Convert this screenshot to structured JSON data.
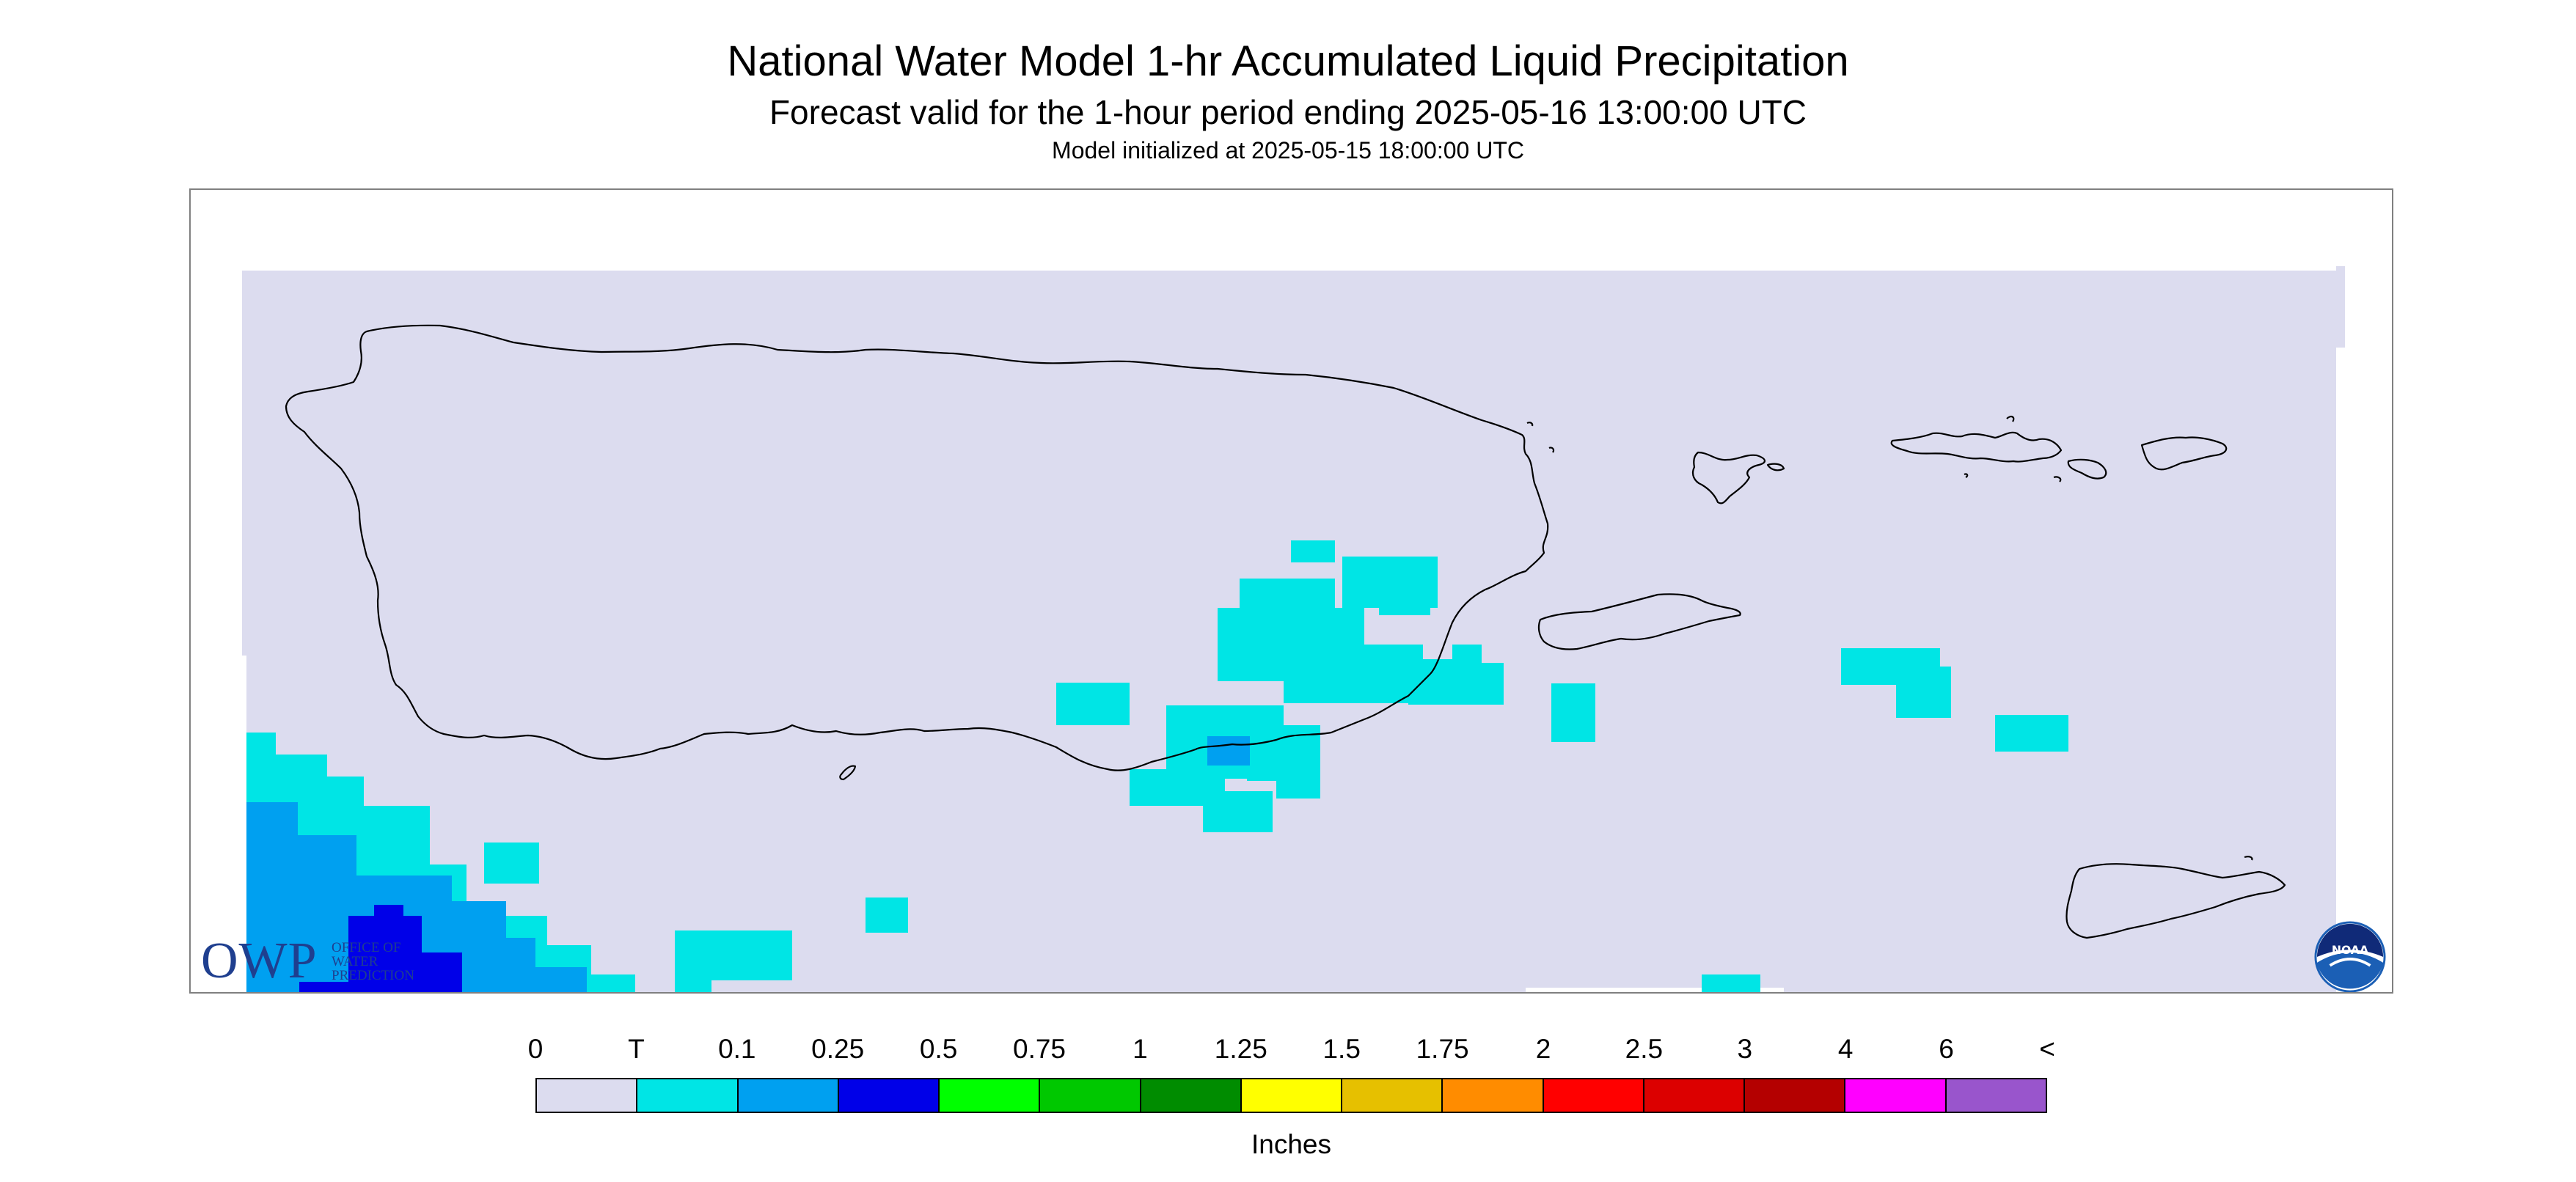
{
  "title": "National Water Model 1-hr Accumulated Liquid Precipitation",
  "subtitle": "Forecast valid for the 1-hour period ending 2025-05-16 13:00:00 UTC",
  "init_text": "Model initialized at 2025-05-15 18:00:00 UTC",
  "logos": {
    "owp_big": "OWP",
    "owp_small": "Office of Water Prediction",
    "noaa": "NOAA"
  },
  "legend": {
    "unit": "Inches",
    "tick_labels": [
      "0",
      "T",
      "0.1",
      "0.25",
      "0.5",
      "0.75",
      "1",
      "1.25",
      "1.5",
      "1.75",
      "2",
      "2.5",
      "3",
      "4",
      "6",
      "<"
    ],
    "colors": [
      "#dcdcef",
      "#00e5e5",
      "#00a0f0",
      "#0000e8",
      "#00ff00",
      "#00c800",
      "#008c00",
      "#ffff00",
      "#e6c000",
      "#ff8c00",
      "#ff0000",
      "#dc0000",
      "#b40000",
      "#ff00ff",
      "#9955cc"
    ]
  },
  "colors": {
    "no_data": "#ffffff",
    "land_outline": "#000000",
    "frame": "#808080",
    "owp_blue": "#1f3f8f",
    "noaa_blue": "#1b5fb5"
  }
}
